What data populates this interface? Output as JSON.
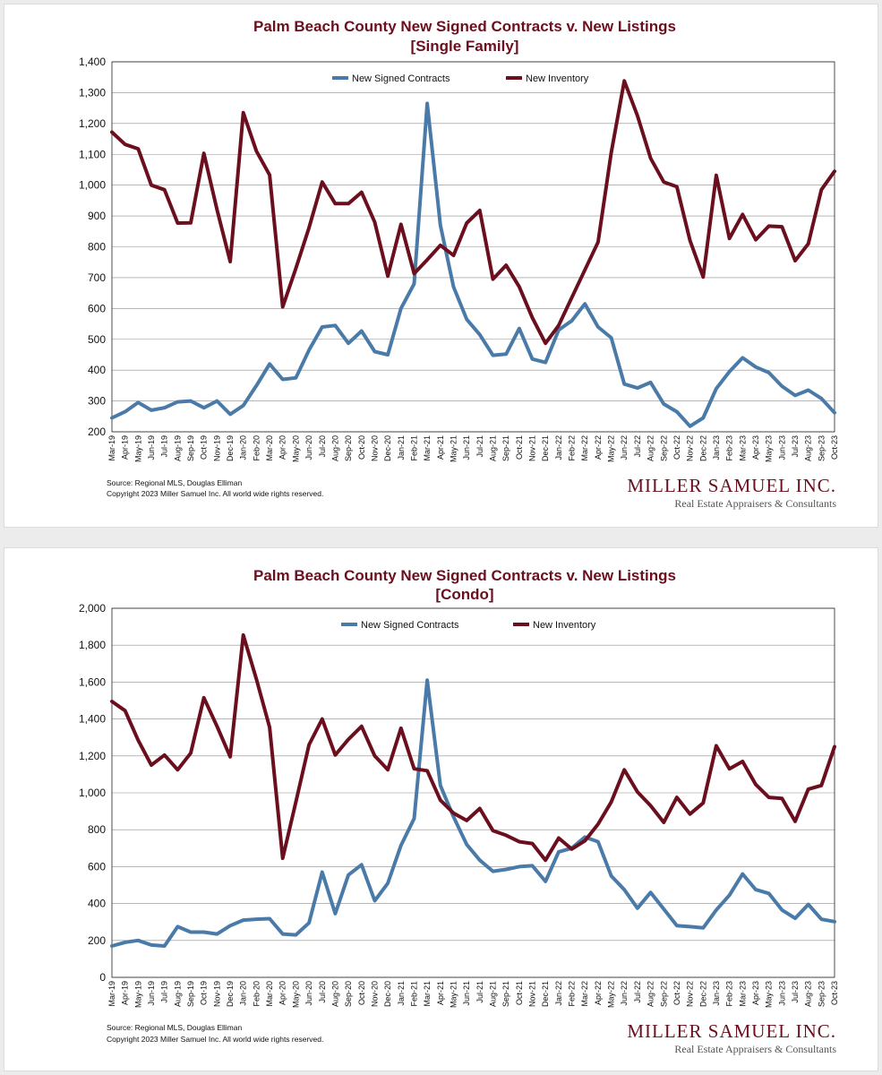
{
  "colors": {
    "contracts": "#4a7aa8",
    "inventory": "#6b0f1e",
    "title": "#6b0f1e"
  },
  "source_note": "Source: Regional MLS, Douglas Elliman",
  "copyright_note": "Copyright 2023 Miller Samuel Inc.  All world wide rights reserved.",
  "brand": {
    "name": "MILLER SAMUEL INC.",
    "tagline": "Real Estate Appraisers & Consultants"
  },
  "chart_data": [
    {
      "type": "line",
      "title": "Palm Beach County New Signed Contracts v. New Listings",
      "subtitle": "[Single Family]",
      "ylim": [
        200,
        1400
      ],
      "yticks": [
        "200",
        "300",
        "400",
        "500",
        "600",
        "700",
        "800",
        "900",
        "1,000",
        "1,100",
        "1,200",
        "1,300",
        "1,400"
      ],
      "legend_position": "top-center",
      "grid": true,
      "categories": [
        "Mar-19",
        "Apr-19",
        "May-19",
        "Jun-19",
        "Jul-19",
        "Aug-19",
        "Sep-19",
        "Oct-19",
        "Nov-19",
        "Dec-19",
        "Jan-20",
        "Feb-20",
        "Mar-20",
        "Apr-20",
        "May-20",
        "Jun-20",
        "Jul-20",
        "Aug-20",
        "Sep-20",
        "Oct-20",
        "Nov-20",
        "Dec-20",
        "Jan-21",
        "Feb-21",
        "Mar-21",
        "Apr-21",
        "May-21",
        "Jun-21",
        "Jul-21",
        "Aug-21",
        "Sep-21",
        "Oct-21",
        "Nov-21",
        "Dec-21",
        "Jan-22",
        "Feb-22",
        "Mar-22",
        "Apr-22",
        "May-22",
        "Jun-22",
        "Jul-22",
        "Aug-22",
        "Sep-22",
        "Oct-22",
        "Nov-22",
        "Dec-22",
        "Jan-23",
        "Feb-23",
        "Mar-23",
        "Apr-23",
        "May-23",
        "Jun-23",
        "Jul-23",
        "Aug-23",
        "Sep-23",
        "Oct-23"
      ],
      "series": [
        {
          "name": "New Signed Contracts",
          "values": [
            245,
            265,
            295,
            270,
            278,
            297,
            300,
            278,
            300,
            257,
            285,
            350,
            420,
            370,
            375,
            465,
            540,
            545,
            487,
            527,
            460,
            450,
            600,
            680,
            1265,
            870,
            670,
            565,
            515,
            448,
            452,
            535,
            436,
            425,
            530,
            560,
            615,
            540,
            505,
            355,
            342,
            360,
            290,
            265,
            218,
            245,
            340,
            395,
            440,
            410,
            392,
            348,
            318,
            335,
            308,
            262
          ]
        },
        {
          "name": "New Inventory",
          "values": [
            1172,
            1132,
            1118,
            1000,
            985,
            877,
            878,
            1103,
            920,
            752,
            1235,
            1110,
            1033,
            605,
            730,
            862,
            1010,
            940,
            940,
            977,
            880,
            705,
            873,
            713,
            758,
            805,
            772,
            877,
            918,
            695,
            740,
            670,
            570,
            487,
            545,
            635,
            725,
            815,
            1105,
            1338,
            1225,
            1087,
            1010,
            995,
            820,
            702,
            1032,
            827,
            905,
            823,
            867,
            865,
            755,
            810,
            985,
            1045
          ]
        }
      ]
    },
    {
      "type": "line",
      "title": "Palm Beach County New Signed Contracts v. New Listings",
      "subtitle": "[Condo]",
      "ylim": [
        0,
        2000
      ],
      "yticks": [
        "0",
        "200",
        "400",
        "600",
        "800",
        "1,000",
        "1,200",
        "1,400",
        "1,600",
        "1,800",
        "2,000"
      ],
      "legend_position": "top-center",
      "grid": true,
      "categories": [
        "Mar-19",
        "Apr-19",
        "May-19",
        "Jun-19",
        "Jul-19",
        "Aug-19",
        "Sep-19",
        "Oct-19",
        "Nov-19",
        "Dec-19",
        "Jan-20",
        "Feb-20",
        "Mar-20",
        "Apr-20",
        "May-20",
        "Jun-20",
        "Jul-20",
        "Aug-20",
        "Sep-20",
        "Oct-20",
        "Nov-20",
        "Dec-20",
        "Jan-21",
        "Feb-21",
        "Mar-21",
        "Apr-21",
        "May-21",
        "Jun-21",
        "Jul-21",
        "Aug-21",
        "Sep-21",
        "Oct-21",
        "Nov-21",
        "Dec-21",
        "Jan-22",
        "Feb-22",
        "Mar-22",
        "Apr-22",
        "May-22",
        "Jun-22",
        "Jul-22",
        "Aug-22",
        "Sep-22",
        "Oct-22",
        "Nov-22",
        "Dec-22",
        "Jan-23",
        "Feb-23",
        "Mar-23",
        "Apr-23",
        "May-23",
        "Jun-23",
        "Jul-23",
        "Aug-23",
        "Sep-23",
        "Oct-23"
      ],
      "series": [
        {
          "name": "New Signed Contracts",
          "values": [
            170,
            190,
            200,
            175,
            170,
            275,
            245,
            245,
            235,
            280,
            310,
            315,
            318,
            235,
            230,
            295,
            570,
            345,
            555,
            610,
            415,
            510,
            715,
            860,
            1610,
            1040,
            870,
            720,
            635,
            575,
            585,
            600,
            605,
            520,
            680,
            700,
            760,
            735,
            550,
            475,
            375,
            460,
            370,
            280,
            275,
            268,
            365,
            445,
            560,
            475,
            455,
            365,
            320,
            395,
            315,
            302
          ]
        },
        {
          "name": "New Inventory",
          "values": [
            1495,
            1445,
            1285,
            1150,
            1205,
            1125,
            1215,
            1515,
            1360,
            1195,
            1855,
            1615,
            1355,
            645,
            950,
            1260,
            1400,
            1205,
            1290,
            1360,
            1200,
            1125,
            1350,
            1130,
            1120,
            960,
            890,
            850,
            915,
            795,
            770,
            735,
            725,
            635,
            755,
            695,
            740,
            830,
            950,
            1125,
            1005,
            930,
            840,
            975,
            885,
            945,
            1255,
            1130,
            1170,
            1045,
            975,
            970,
            845,
            1020,
            1040,
            1250
          ]
        }
      ]
    }
  ]
}
